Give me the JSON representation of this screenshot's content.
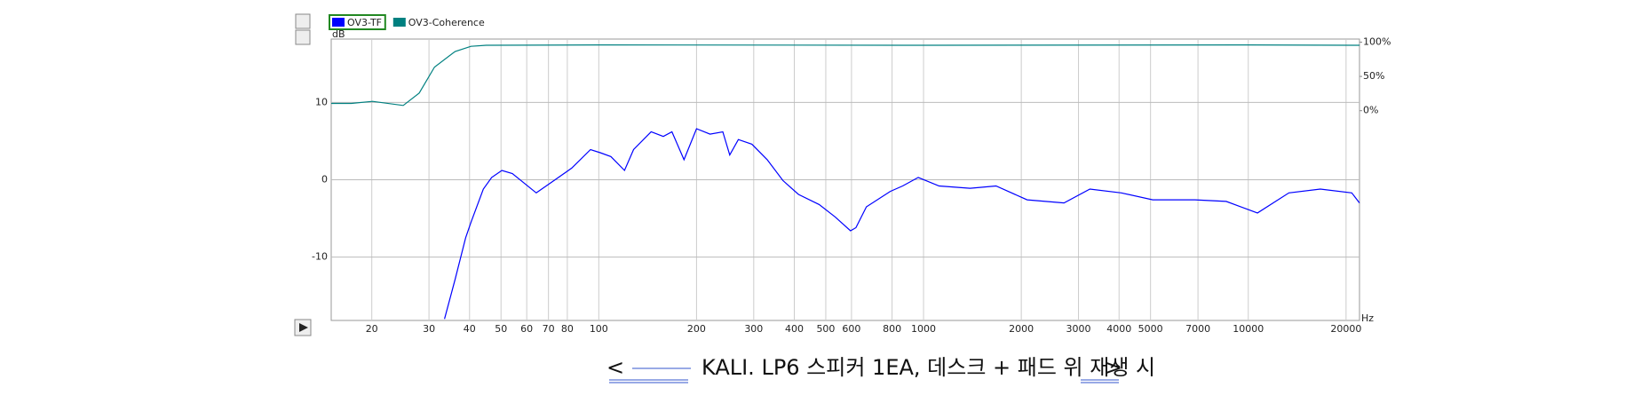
{
  "chart_data": {
    "type": "line",
    "legend": [
      {
        "name": "OV3-TF",
        "color": "#0000ff",
        "selected": true
      },
      {
        "name": "OV3-Coherence",
        "color": "#008080"
      }
    ],
    "y_unit": "dB",
    "x_unit": "Hz",
    "xscale": "log",
    "grid": true,
    "xlim": [
      15,
      22000
    ],
    "xticks": [
      20,
      30,
      40,
      50,
      60,
      70,
      80,
      100,
      200,
      300,
      400,
      500,
      600,
      800,
      1000,
      2000,
      3000,
      4000,
      5000,
      7000,
      10000,
      20000
    ],
    "ylim": [
      -18.2,
      18.2
    ],
    "yticks": [
      10,
      0,
      -10
    ],
    "y2lim": [
      -306,
      104.5
    ],
    "y2ticks": [
      {
        "value": 100,
        "label": "100%"
      },
      {
        "value": 50,
        "label": "50%"
      },
      {
        "value": 0,
        "label": "0%"
      }
    ],
    "series": [
      {
        "name": "OV3-TF",
        "color": "#0000ff",
        "axis": "y",
        "x": [
          33.5,
          36.1,
          38.9,
          40.4,
          44.1,
          46.8,
          50.3,
          54.2,
          64.2,
          72.8,
          82.5,
          94.3,
          101,
          109,
          120,
          128,
          145,
          158,
          168,
          183,
          200,
          220,
          241,
          253,
          269,
          296,
          330,
          369,
          412,
          477,
          534,
          596,
          619,
          667,
          790,
          862,
          963,
          1117,
          1391,
          1672,
          2084,
          2707,
          3253,
          4066,
          5080,
          6846,
          8550,
          10670,
          13340,
          16670,
          20830,
          22000
        ],
        "values": [
          -18,
          -12.9,
          -7.5,
          -5.5,
          -1.2,
          0.3,
          1.2,
          0.8,
          -1.7,
          -0.1,
          1.5,
          3.9,
          3.5,
          3.0,
          1.2,
          3.9,
          6.2,
          5.6,
          6.2,
          2.6,
          6.6,
          5.9,
          6.2,
          3.2,
          5.2,
          4.6,
          2.6,
          -0.1,
          -1.9,
          -3.2,
          -4.8,
          -6.6,
          -6.2,
          -3.5,
          -1.5,
          -0.8,
          0.3,
          -0.8,
          -1.1,
          -0.8,
          -2.6,
          -3.0,
          -1.2,
          -1.7,
          -2.6,
          -2.6,
          -2.8,
          -4.3,
          -1.7,
          -1.2,
          -1.7,
          -3.0
        ]
      },
      {
        "name": "OV3-Coherence",
        "color": "#008080",
        "axis": "y2",
        "x": [
          15,
          17.3,
          20.1,
          25,
          28,
          31.2,
          36.1,
          40.4,
          45,
          100,
          1000,
          10000,
          22000
        ],
        "values": [
          10.6,
          10.6,
          13.6,
          7.6,
          25.8,
          63.6,
          86.4,
          93.9,
          95.5,
          96,
          95.5,
          96,
          95.5
        ]
      }
    ]
  },
  "caption": {
    "open": "<",
    "text": "KALI. LP6 스피커 1EA, 데스크 + 패드 위 재생 시",
    "close": ">"
  }
}
